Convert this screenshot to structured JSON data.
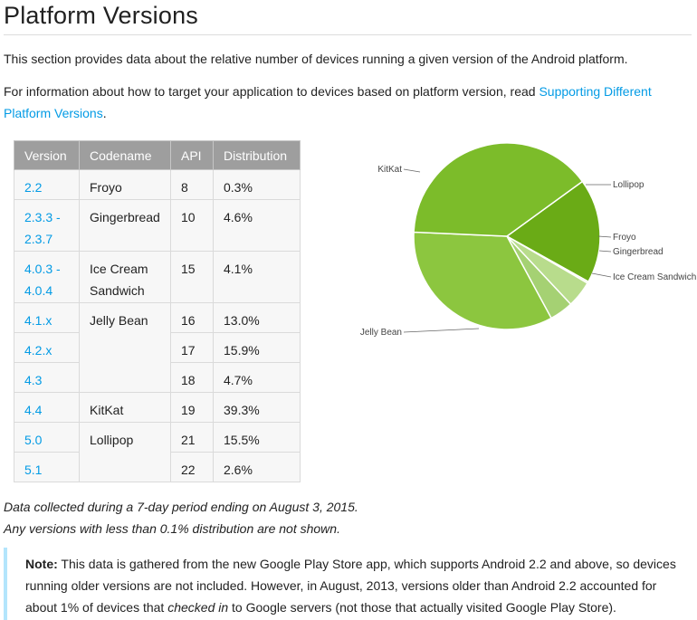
{
  "page": {
    "title": "Platform Versions",
    "intro": "This section provides data about the relative number of devices running a given version of the Android platform.",
    "target_text": "For information about how to target your application to devices based on platform version, read ",
    "target_link": "Supporting Different Platform Versions",
    "target_end": "."
  },
  "table": {
    "headers": [
      "Version",
      "Codename",
      "API",
      "Distribution"
    ],
    "rows": [
      {
        "version": "2.2",
        "codename": "Froyo",
        "api": "8",
        "distribution": "0.3%"
      },
      {
        "version": "2.3.3 - 2.3.7",
        "codename": "Gingerbread",
        "api": "10",
        "distribution": "4.6%"
      },
      {
        "version": "4.0.3 - 4.0.4",
        "codename": "Ice Cream Sandwich",
        "api": "15",
        "distribution": "4.1%"
      },
      {
        "version": "4.1.x",
        "codename": "Jelly Bean",
        "api": "16",
        "distribution": "13.0%"
      },
      {
        "version": "4.2.x",
        "codename": "",
        "api": "17",
        "distribution": "15.9%"
      },
      {
        "version": "4.3",
        "codename": "",
        "api": "18",
        "distribution": "4.7%"
      },
      {
        "version": "4.4",
        "codename": "KitKat",
        "api": "19",
        "distribution": "39.3%"
      },
      {
        "version": "5.0",
        "codename": "Lollipop",
        "api": "21",
        "distribution": "15.5%"
      },
      {
        "version": "5.1",
        "codename": "",
        "api": "22",
        "distribution": "2.6%"
      }
    ]
  },
  "chart_data": {
    "type": "pie",
    "categories": [
      "Lollipop",
      "Froyo",
      "Gingerbread",
      "Ice Cream Sandwich",
      "Jelly Bean",
      "KitKat"
    ],
    "values": [
      18.1,
      0.3,
      4.6,
      4.1,
      33.6,
      39.3
    ],
    "colors": [
      "#6aab16",
      "#d5ecb5",
      "#b8dc8c",
      "#a5d173",
      "#8cc63f",
      "#7cbc2a"
    ],
    "title": "",
    "legend": "none"
  },
  "footnote": {
    "line1": "Data collected during a 7-day period ending on August 3, 2015.",
    "line2": "Any versions with less than 0.1% distribution are not shown."
  },
  "note": {
    "label": "Note:",
    "text_a": " This data is gathered from the new Google Play Store app, which supports Android 2.2 and above, so devices running older versions are not included. However, in August, 2013, versions older than Android 2.2 accounted for about 1% of devices that ",
    "text_em": "checked in",
    "text_b": " to Google servers (not those that actually visited Google Play Store)."
  },
  "colors": {
    "link": "#039be5",
    "table_header": "#9e9e9e",
    "note_border": "#b3e5fc"
  }
}
